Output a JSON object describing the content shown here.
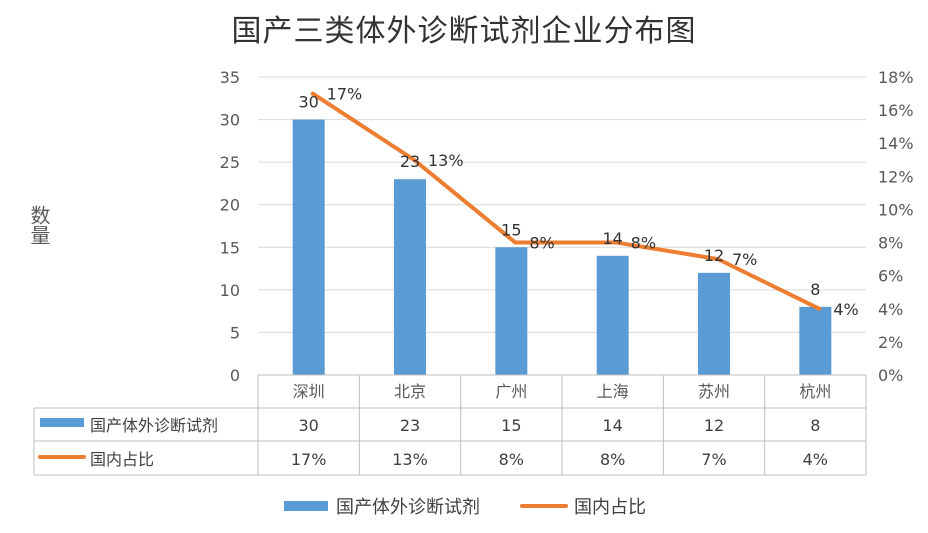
{
  "chart_data": {
    "type": "bar",
    "title": "国产三类体外诊断试剂企业分布图",
    "ylabel": "数量",
    "categories": [
      "深圳",
      "北京",
      "广州",
      "上海",
      "苏州",
      "杭州"
    ],
    "series": [
      {
        "name": "国产体外诊断试剂",
        "type": "bar",
        "axis": "left",
        "values": [
          30,
          23,
          15,
          14,
          12,
          8
        ],
        "labels": [
          "30",
          "23",
          "15",
          "14",
          "12",
          "8"
        ],
        "color": "#5B9BD5"
      },
      {
        "name": "国内占比",
        "type": "line",
        "axis": "right",
        "values": [
          17,
          13,
          8,
          8,
          7,
          4
        ],
        "labels": [
          "17%",
          "13%",
          "8%",
          "8%",
          "7%",
          "4%"
        ],
        "color": "#ED7D31"
      }
    ],
    "y_left": {
      "min": 0,
      "max": 35,
      "step": 5,
      "ticks": [
        "0",
        "5",
        "10",
        "15",
        "20",
        "25",
        "30",
        "35"
      ]
    },
    "y_right": {
      "min": 0,
      "max": 18,
      "step": 2,
      "ticks": [
        "0%",
        "2%",
        "4%",
        "6%",
        "8%",
        "10%",
        "12%",
        "14%",
        "16%",
        "18%"
      ]
    },
    "grid": true,
    "data_table": true,
    "legend_position": "bottom"
  }
}
